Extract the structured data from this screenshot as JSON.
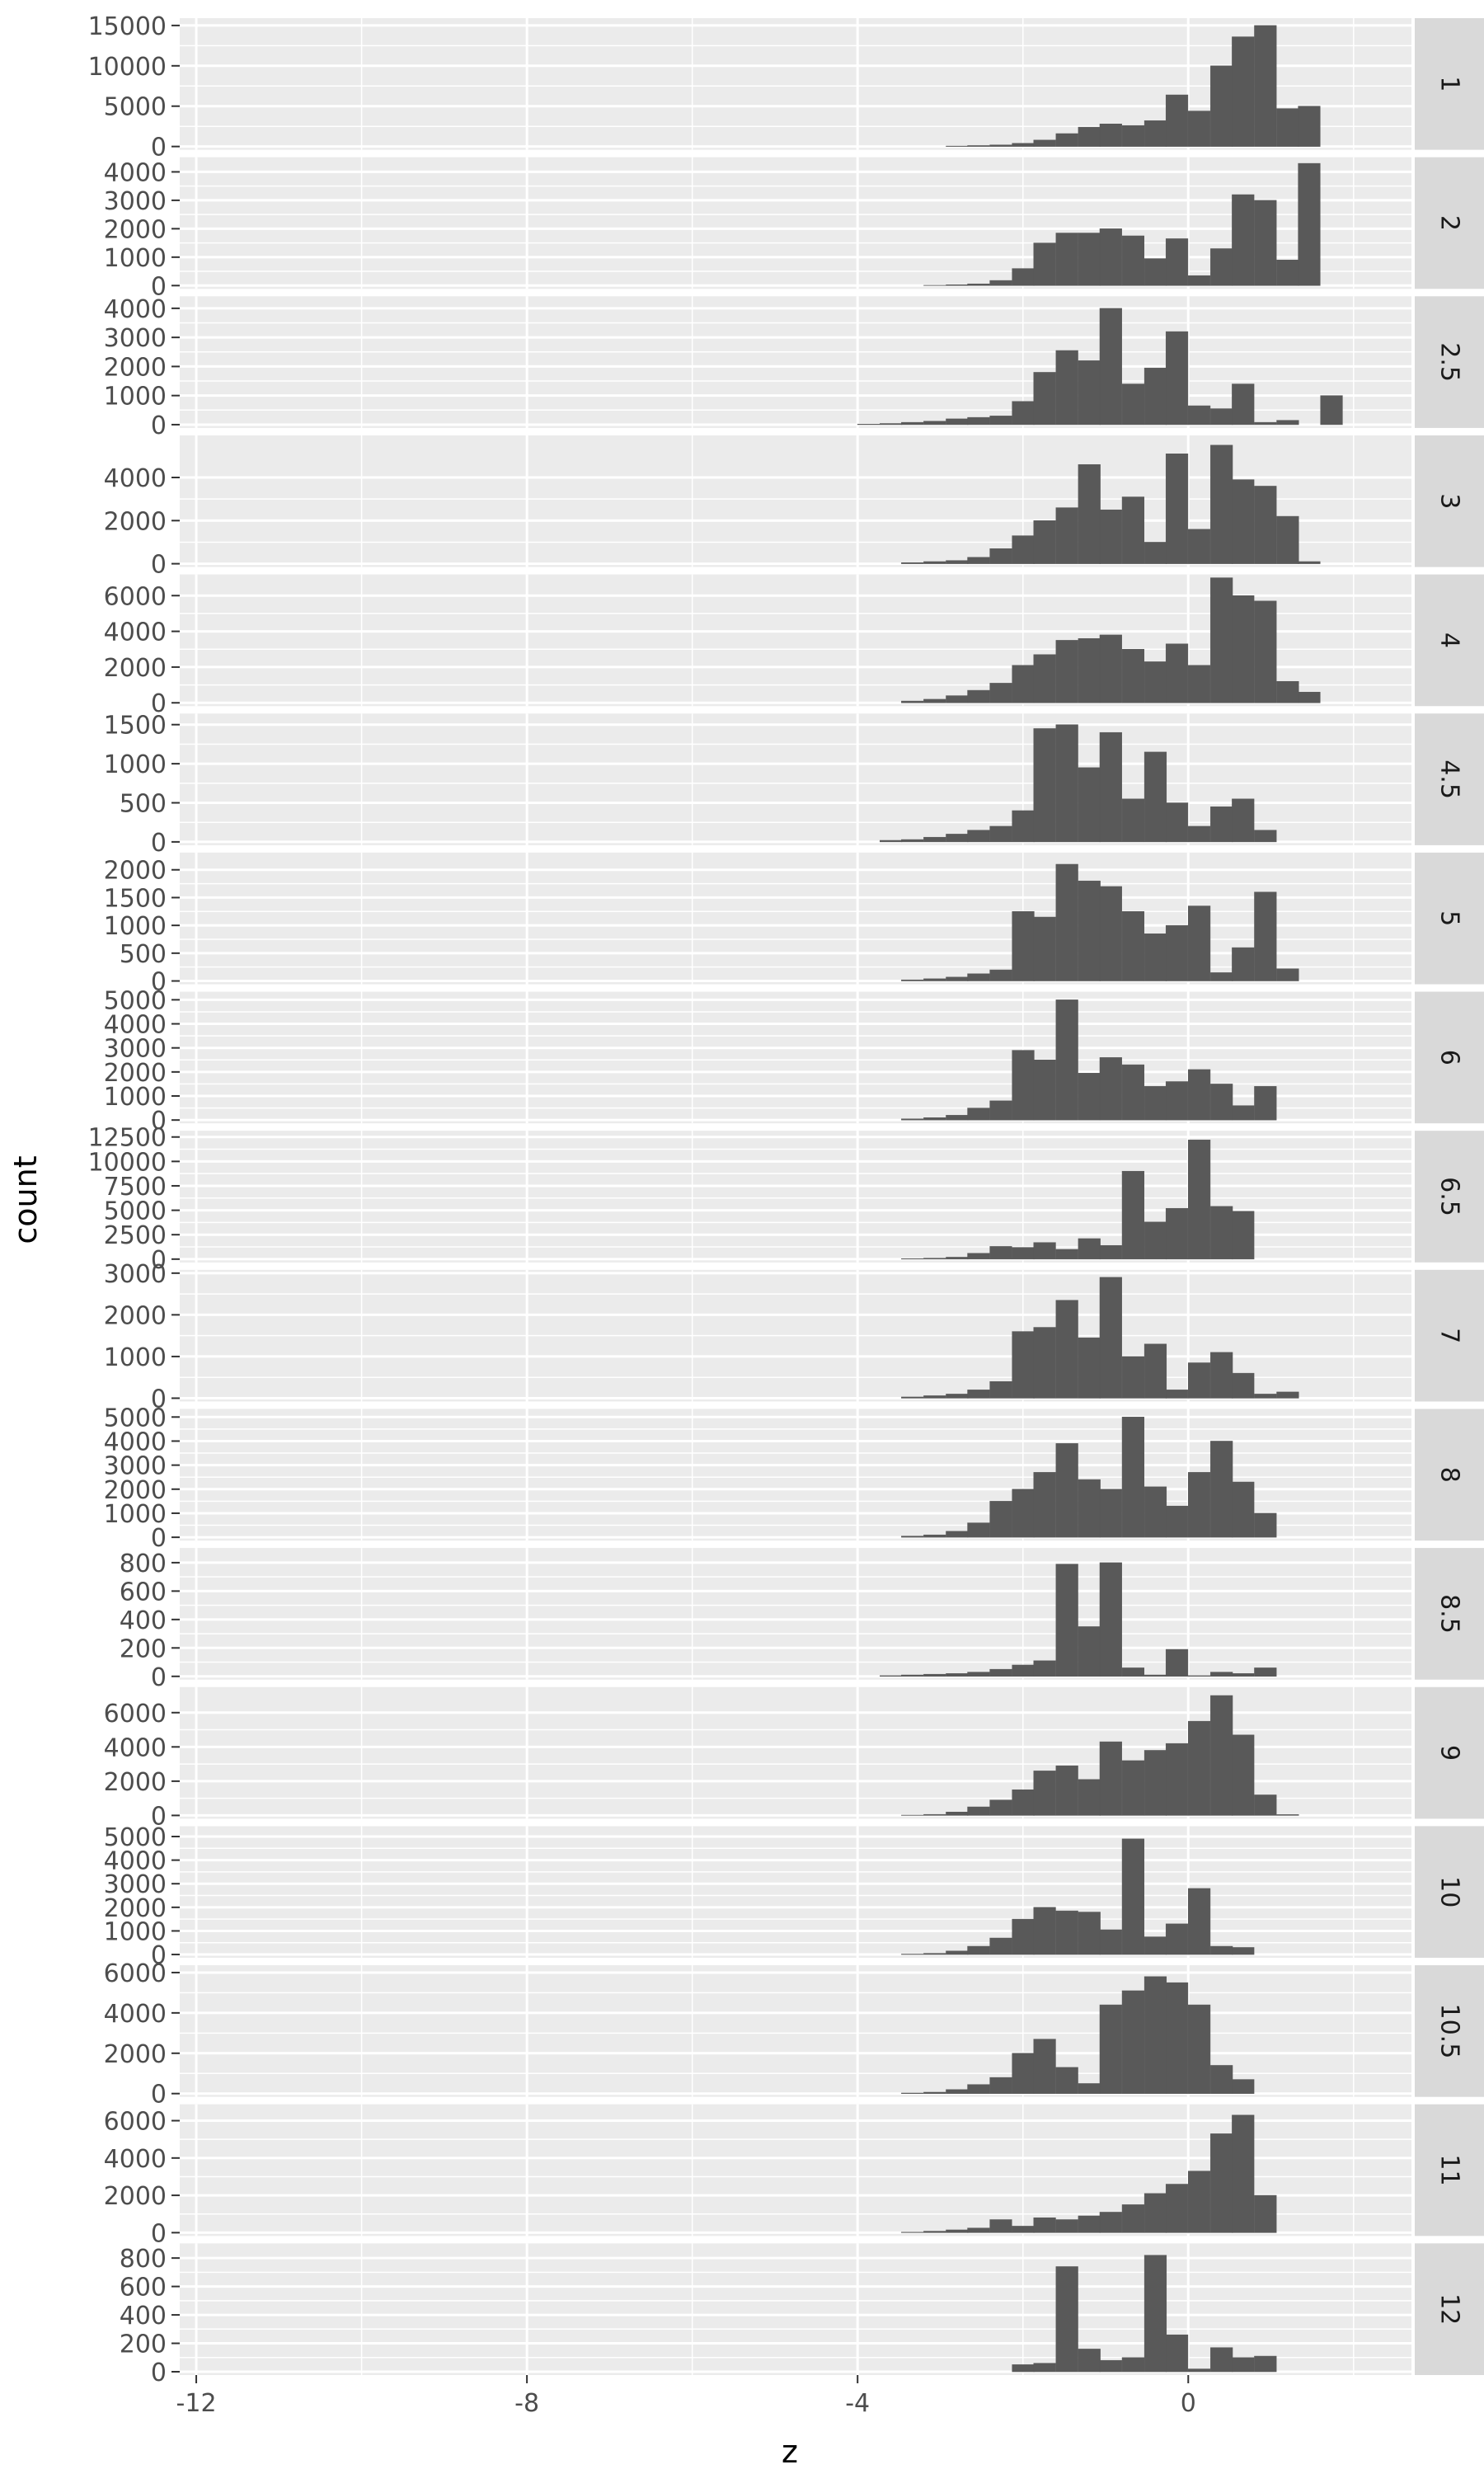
{
  "chart_data": {
    "type": "bar",
    "facet_type": "histogram-facets",
    "xlabel": "z",
    "ylabel": "count",
    "xlim": [
      -12.2,
      2.7
    ],
    "x_ticks": [
      -12,
      -8,
      -4,
      0
    ],
    "x_tick_labels": [
      "-12",
      "-8",
      "-4",
      "0"
    ],
    "bins": [
      -4.0,
      -3.73,
      -3.47,
      -3.2,
      -2.93,
      -2.67,
      -2.4,
      -2.13,
      -1.87,
      -1.6,
      -1.33,
      -1.07,
      -0.8,
      -0.53,
      -0.27,
      0.0,
      0.27,
      0.53,
      0.8,
      1.07,
      1.33,
      1.6,
      1.87
    ],
    "bin_width": 0.266,
    "grid": true,
    "colors": {
      "panel_bg": "#ebebeb",
      "grid": "#ffffff",
      "bar": "#595959",
      "strip_bg": "#d9d9d9",
      "tick_text": "#4d4d4d",
      "text": "#000000"
    },
    "facets": [
      {
        "label": "1",
        "ylim": [
          0,
          15500
        ],
        "y_ticks": [
          0,
          5000,
          10000,
          15000
        ],
        "y_tick_labels": [
          "0",
          "5000",
          "10000",
          "15000"
        ],
        "values": [
          0,
          0,
          0,
          0,
          60,
          120,
          200,
          400,
          800,
          1600,
          2400,
          2800,
          2600,
          3200,
          6400,
          4400,
          10000,
          13600,
          15000,
          4700,
          5000,
          0,
          0
        ]
      },
      {
        "label": "2",
        "ylim": [
          0,
          4400
        ],
        "y_ticks": [
          0,
          1000,
          2000,
          3000,
          4000
        ],
        "y_tick_labels": [
          "0",
          "1000",
          "2000",
          "3000",
          "4000"
        ],
        "values": [
          0,
          0,
          0,
          10,
          30,
          60,
          180,
          600,
          1500,
          1850,
          1850,
          2000,
          1750,
          950,
          1650,
          350,
          1300,
          3200,
          3000,
          900,
          4300,
          0,
          0
        ]
      },
      {
        "label": "2.5",
        "ylim": [
          0,
          4300
        ],
        "y_ticks": [
          0,
          1000,
          2000,
          3000,
          4000
        ],
        "y_tick_labels": [
          "0",
          "1000",
          "2000",
          "3000",
          "4000"
        ],
        "values": [
          20,
          40,
          80,
          120,
          200,
          250,
          300,
          800,
          1800,
          2550,
          2200,
          4000,
          1400,
          1950,
          3200,
          650,
          550,
          1400,
          80,
          150,
          0,
          1000,
          0
        ]
      },
      {
        "label": "3",
        "ylim": [
          0,
          5800
        ],
        "y_ticks": [
          0,
          2000,
          4000
        ],
        "y_tick_labels": [
          "0",
          "2000",
          "4000"
        ],
        "values": [
          0,
          0,
          50,
          100,
          150,
          300,
          700,
          1300,
          2000,
          2600,
          4600,
          2500,
          3100,
          1000,
          5100,
          1600,
          5500,
          3900,
          3600,
          2200,
          100,
          0,
          0
        ]
      },
      {
        "label": "4",
        "ylim": [
          0,
          7000
        ],
        "y_ticks": [
          0,
          2000,
          4000,
          6000
        ],
        "y_tick_labels": [
          "0",
          "2000",
          "4000",
          "6000"
        ],
        "values": [
          0,
          0,
          100,
          200,
          400,
          700,
          1100,
          2100,
          2700,
          3500,
          3600,
          3800,
          3000,
          2300,
          3300,
          2100,
          7000,
          6000,
          5700,
          1200,
          600,
          0,
          0
        ]
      },
      {
        "label": "4.5",
        "ylim": [
          0,
          1600
        ],
        "y_ticks": [
          0,
          500,
          1000,
          1500
        ],
        "y_tick_labels": [
          "0",
          "500",
          "1000",
          "1500"
        ],
        "values": [
          0,
          20,
          30,
          60,
          100,
          150,
          200,
          400,
          1450,
          1500,
          950,
          1400,
          550,
          1150,
          500,
          200,
          450,
          550,
          150,
          0,
          0,
          0,
          0
        ]
      },
      {
        "label": "5",
        "ylim": [
          0,
          2250
        ],
        "y_ticks": [
          0,
          500,
          1000,
          1500,
          2000
        ],
        "y_tick_labels": [
          "0",
          "500",
          "1000",
          "1500",
          "2000"
        ],
        "values": [
          0,
          0,
          20,
          40,
          70,
          130,
          200,
          1250,
          1150,
          2100,
          1800,
          1700,
          1250,
          850,
          1000,
          1350,
          150,
          600,
          1600,
          220,
          0,
          0,
          0
        ]
      },
      {
        "label": "6",
        "ylim": [
          0,
          5200
        ],
        "y_ticks": [
          0,
          1000,
          2000,
          3000,
          4000,
          5000
        ],
        "y_tick_labels": [
          "0",
          "1000",
          "2000",
          "3000",
          "4000",
          "5000"
        ],
        "values": [
          0,
          0,
          50,
          100,
          200,
          500,
          800,
          2900,
          2500,
          5000,
          1950,
          2600,
          2300,
          1400,
          1600,
          2100,
          1500,
          600,
          1400,
          0,
          0,
          0,
          0
        ]
      },
      {
        "label": "6.5",
        "ylim": [
          0,
          12800
        ],
        "y_ticks": [
          0,
          2500,
          5000,
          7500,
          10000,
          12500
        ],
        "y_tick_labels": [
          "0",
          "2500",
          "5000",
          "7500",
          "10000",
          "12500"
        ],
        "values": [
          0,
          0,
          50,
          100,
          200,
          600,
          1300,
          1200,
          1700,
          1000,
          2100,
          1400,
          9000,
          3800,
          5200,
          12200,
          5400,
          4900,
          0,
          0,
          0,
          0,
          0
        ]
      },
      {
        "label": "7",
        "ylim": [
          0,
          3000
        ],
        "y_ticks": [
          0,
          1000,
          2000,
          3000
        ],
        "y_tick_labels": [
          "0",
          "1000",
          "2000",
          "3000"
        ],
        "values": [
          0,
          0,
          30,
          60,
          100,
          200,
          400,
          1600,
          1700,
          2350,
          1450,
          2900,
          1000,
          1300,
          200,
          850,
          1100,
          600,
          100,
          150,
          0,
          0,
          0
        ]
      },
      {
        "label": "8",
        "ylim": [
          0,
          5200
        ],
        "y_ticks": [
          0,
          1000,
          2000,
          3000,
          4000,
          5000
        ],
        "y_tick_labels": [
          "0",
          "1000",
          "2000",
          "3000",
          "4000",
          "5000"
        ],
        "values": [
          0,
          0,
          50,
          100,
          250,
          600,
          1500,
          2000,
          2700,
          3900,
          2400,
          2000,
          5000,
          2100,
          1300,
          2700,
          4000,
          2300,
          1000,
          0,
          0,
          0,
          0
        ]
      },
      {
        "label": "8.5",
        "ylim": [
          0,
          880
        ],
        "y_ticks": [
          0,
          200,
          400,
          600,
          800
        ],
        "y_tick_labels": [
          "0",
          "200",
          "400",
          "600",
          "800"
        ],
        "values": [
          0,
          5,
          10,
          15,
          20,
          30,
          50,
          80,
          110,
          790,
          350,
          800,
          60,
          10,
          190,
          5,
          30,
          20,
          60,
          0,
          0,
          0,
          0
        ]
      },
      {
        "label": "9",
        "ylim": [
          0,
          7300
        ],
        "y_ticks": [
          0,
          2000,
          4000,
          6000
        ],
        "y_tick_labels": [
          "0",
          "2000",
          "4000",
          "6000"
        ],
        "values": [
          0,
          0,
          20,
          60,
          200,
          500,
          900,
          1500,
          2600,
          2900,
          2100,
          4300,
          3200,
          3800,
          4200,
          5500,
          7000,
          4700,
          1200,
          50,
          0,
          0,
          0
        ]
      },
      {
        "label": "10",
        "ylim": [
          0,
          5300
        ],
        "y_ticks": [
          0,
          1000,
          2000,
          3000,
          4000,
          5000
        ],
        "y_tick_labels": [
          "0",
          "1000",
          "2000",
          "3000",
          "4000",
          "5000"
        ],
        "values": [
          0,
          0,
          20,
          50,
          150,
          350,
          700,
          1500,
          2000,
          1850,
          1800,
          1050,
          4900,
          750,
          1300,
          2800,
          350,
          300,
          0,
          0,
          0,
          0,
          0
        ]
      },
      {
        "label": "10.5",
        "ylim": [
          0,
          6200
        ],
        "y_ticks": [
          0,
          2000,
          4000,
          6000
        ],
        "y_tick_labels": [
          "0",
          "2000",
          "4000",
          "6000"
        ],
        "values": [
          0,
          0,
          30,
          70,
          200,
          450,
          800,
          2000,
          2700,
          1300,
          500,
          4400,
          5100,
          5800,
          5500,
          4400,
          1400,
          700,
          0,
          0,
          0,
          0,
          0
        ]
      },
      {
        "label": "11",
        "ylim": [
          0,
          6700
        ],
        "y_ticks": [
          0,
          2000,
          4000,
          6000
        ],
        "y_tick_labels": [
          "0",
          "2000",
          "4000",
          "6000"
        ],
        "values": [
          0,
          0,
          30,
          80,
          150,
          250,
          700,
          350,
          800,
          700,
          900,
          1100,
          1500,
          2100,
          2600,
          3300,
          5300,
          6300,
          2000,
          0,
          0,
          0,
          0
        ]
      },
      {
        "label": "12",
        "ylim": [
          0,
          880
        ],
        "y_ticks": [
          0,
          200,
          400,
          600,
          800
        ],
        "y_tick_labels": [
          "0",
          "200",
          "400",
          "600",
          "800"
        ],
        "values": [
          0,
          0,
          0,
          0,
          0,
          0,
          0,
          50,
          60,
          740,
          160,
          80,
          100,
          820,
          260,
          20,
          170,
          100,
          110,
          0,
          0,
          0,
          0
        ]
      }
    ]
  }
}
